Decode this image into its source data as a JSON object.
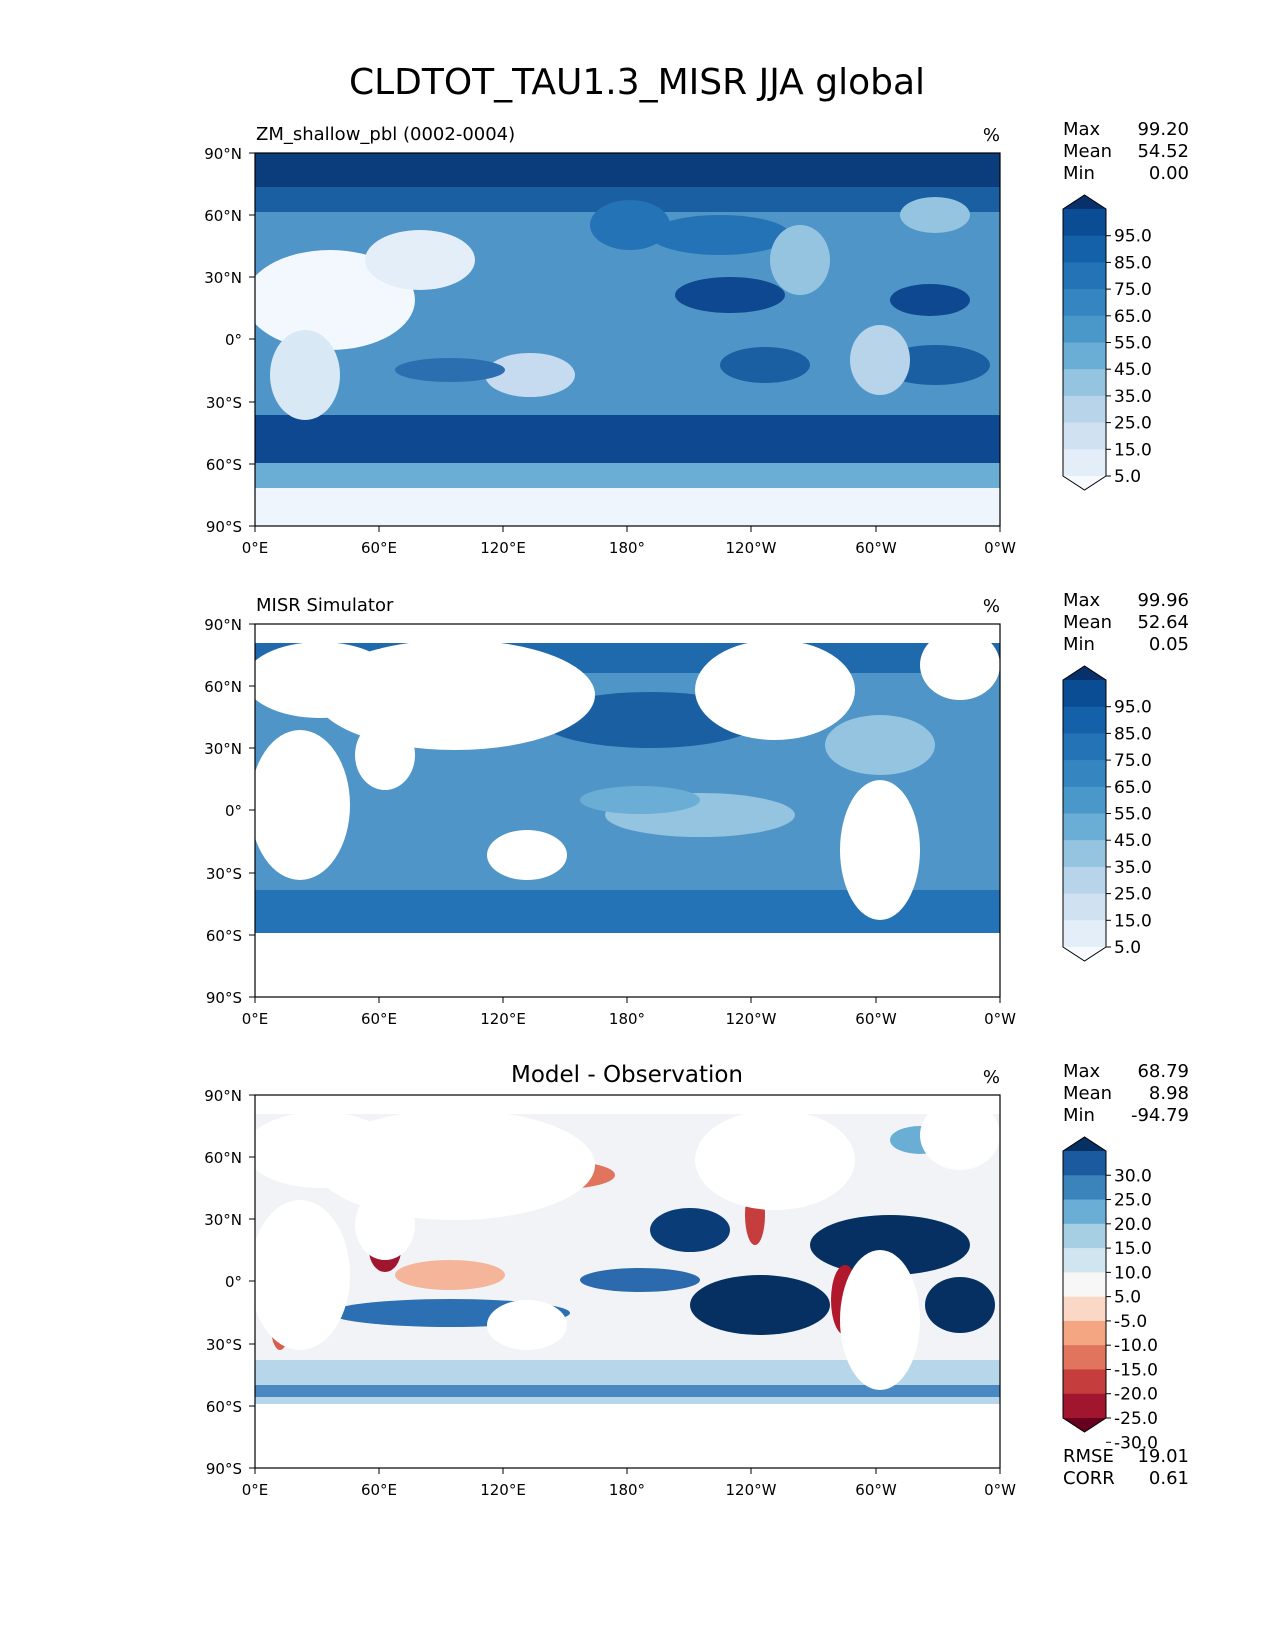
{
  "figure": {
    "title": "CLDTOT_TAU1.3_MISR JJA global"
  },
  "panels": [
    {
      "title_left": "ZM_shallow_pbl (0002-0004)",
      "title_center": "",
      "units": "%",
      "stats": [
        {
          "label": "Max",
          "value": "99.20"
        },
        {
          "label": "Mean",
          "value": "54.52"
        },
        {
          "label": "Min",
          "value": "0.00"
        }
      ],
      "colorbar": {
        "labels": [
          "95.0",
          "85.0",
          "75.0",
          "65.0",
          "55.0",
          "45.0",
          "35.0",
          "25.0",
          "15.0",
          "5.0"
        ],
        "colors": [
          "#08306b",
          "#0b4d94",
          "#1561a9",
          "#2373b6",
          "#3586c0",
          "#4a98c9",
          "#6aaed6",
          "#94c4df",
          "#b7d4ea",
          "#d0e1f2",
          "#e3eef9",
          "#f7fbff"
        ]
      }
    },
    {
      "title_left": "MISR Simulator",
      "title_center": "",
      "units": "%",
      "stats": [
        {
          "label": "Max",
          "value": "99.96"
        },
        {
          "label": "Mean",
          "value": "52.64"
        },
        {
          "label": "Min",
          "value": "0.05"
        }
      ],
      "colorbar": {
        "labels": [
          "95.0",
          "85.0",
          "75.0",
          "65.0",
          "55.0",
          "45.0",
          "35.0",
          "25.0",
          "15.0",
          "5.0"
        ],
        "colors": [
          "#08306b",
          "#0b4d94",
          "#1561a9",
          "#2373b6",
          "#3586c0",
          "#4a98c9",
          "#6aaed6",
          "#94c4df",
          "#b7d4ea",
          "#d0e1f2",
          "#e3eef9",
          "#f7fbff"
        ]
      }
    },
    {
      "title_left": "",
      "title_center": "Model - Observation",
      "units": "%",
      "stats": [
        {
          "label": "Max",
          "value": "68.79"
        },
        {
          "label": "Mean",
          "value": "8.98"
        },
        {
          "label": "Min",
          "value": "-94.79"
        }
      ],
      "colorbar": {
        "labels": [
          "30.0",
          "25.0",
          "20.0",
          "15.0",
          "10.0",
          "5.0",
          "-5.0",
          "-10.0",
          "-15.0",
          "-20.0",
          "-25.0",
          "-30.0"
        ],
        "colors": [
          "#053061",
          "#1b5a9e",
          "#3a84bb",
          "#6aaed6",
          "#a7cfe4",
          "#d1e5f0",
          "#f7f7f7",
          "#fbd8c6",
          "#f4a582",
          "#e0745c",
          "#c53e3d",
          "#a2152e",
          "#67001f"
        ]
      },
      "metrics": [
        {
          "label": "RMSE",
          "value": "19.01"
        },
        {
          "label": "CORR",
          "value": "0.61"
        }
      ]
    }
  ],
  "axes": {
    "x_ticks": [
      "0°E",
      "60°E",
      "120°E",
      "180°",
      "120°W",
      "60°W",
      "0°W"
    ],
    "y_ticks": [
      "90°N",
      "60°N",
      "30°N",
      "0°",
      "30°S",
      "60°S",
      "90°S"
    ]
  },
  "chart_data": [
    {
      "type": "heatmap",
      "title": "ZM_shallow_pbl (0002-0004)",
      "units": "%",
      "xlim": [
        0,
        360
      ],
      "ylim": [
        -90,
        90
      ],
      "levels": [
        5,
        15,
        25,
        35,
        45,
        55,
        65,
        75,
        85,
        95
      ],
      "summary": {
        "max": 99.2,
        "mean": 54.52,
        "min": 0.0
      }
    },
    {
      "type": "heatmap",
      "title": "MISR Simulator",
      "units": "%",
      "xlim": [
        0,
        360
      ],
      "ylim": [
        -90,
        90
      ],
      "levels": [
        5,
        15,
        25,
        35,
        45,
        55,
        65,
        75,
        85,
        95
      ],
      "summary": {
        "max": 99.96,
        "mean": 52.64,
        "min": 0.05
      }
    },
    {
      "type": "heatmap",
      "title": "Model - Observation",
      "units": "%",
      "xlim": [
        0,
        360
      ],
      "ylim": [
        -90,
        90
      ],
      "levels": [
        -30,
        -25,
        -20,
        -15,
        -10,
        -5,
        5,
        10,
        15,
        20,
        25,
        30
      ],
      "summary": {
        "max": 68.79,
        "mean": 8.98,
        "min": -94.79,
        "rmse": 19.01,
        "corr": 0.61
      }
    }
  ]
}
